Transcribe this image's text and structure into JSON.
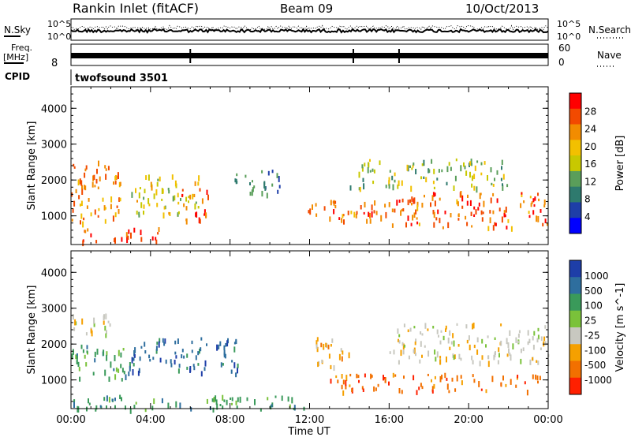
{
  "header": {
    "station": "Rankin Inlet (fitACF)",
    "beam": "Beam 09",
    "date": "10/Oct/2013"
  },
  "top_panels": {
    "nsky_label": "N.Sky",
    "nsearch_label": "N.Search",
    "left_ticks": [
      "10^5",
      "10^0"
    ],
    "right_ticks": [
      "10^5",
      "10^0"
    ],
    "freq_label_1": "Freq.",
    "freq_label_2": "[MHz]",
    "freq_ticks": [
      "8"
    ],
    "nave_label": "Nave",
    "nave_ticks": [
      "60",
      "0"
    ],
    "cpid_label": "CPID",
    "cpid_value": "twofsound 3501"
  },
  "colors": {
    "power_scale": [
      "#ff0000",
      "#f24a00",
      "#f28c00",
      "#f2c000",
      "#c8c800",
      "#5a9e5a",
      "#2e7a6e",
      "#1e3ea8",
      "#0000ff"
    ],
    "velocity_scale": [
      "#1e3ea8",
      "#2e6e9e",
      "#3a9a5a",
      "#7ac23a",
      "#c8c8c0",
      "#f5a000",
      "#f27000",
      "#ff2000"
    ]
  },
  "chart_data": [
    {
      "type": "heatmap",
      "panel": "power",
      "ylabel": "Slant Range [km]",
      "yticks": [
        1000,
        2000,
        3000,
        4000
      ],
      "ylim": [
        200,
        4600
      ],
      "colorbar_label": "Power [dB]",
      "colorbar_ticks": [
        4,
        8,
        12,
        16,
        20,
        24,
        28
      ],
      "colorbar_range": [
        0,
        32
      ],
      "bands": [
        {
          "x0": 0.0,
          "x1": 2.5,
          "y0": 800,
          "y1": 2600,
          "value": 24
        },
        {
          "x0": 0.5,
          "x1": 4.5,
          "y0": 300,
          "y1": 700,
          "value": 30
        },
        {
          "x0": 3.0,
          "x1": 6.5,
          "y0": 1000,
          "y1": 2200,
          "value": 18
        },
        {
          "x0": 5.5,
          "x1": 7.0,
          "y0": 900,
          "y1": 1800,
          "value": 28
        },
        {
          "x0": 8.0,
          "x1": 10.5,
          "y0": 1600,
          "y1": 2300,
          "value": 8
        },
        {
          "x0": 11.5,
          "x1": 16.0,
          "y0": 900,
          "y1": 1500,
          "value": 26
        },
        {
          "x0": 16.0,
          "x1": 24.0,
          "y0": 700,
          "y1": 1700,
          "value": 27
        },
        {
          "x0": 14.0,
          "x1": 22.0,
          "y0": 1800,
          "y1": 2600,
          "value": 14
        }
      ]
    },
    {
      "type": "heatmap",
      "panel": "velocity",
      "ylabel": "Slant Range [km]",
      "yticks": [
        1000,
        2000,
        3000,
        4000
      ],
      "ylim": [
        200,
        4600
      ],
      "colorbar_label": "Velocity [m s^-1]",
      "colorbar_ticks": [
        "1000",
        "500",
        "100",
        "25",
        "-25",
        "-100",
        "-500",
        "-1000"
      ],
      "bands": [
        {
          "x0": 0.0,
          "x1": 3.0,
          "y0": 1000,
          "y1": 2000,
          "value": "100"
        },
        {
          "x0": 0.0,
          "x1": 2.0,
          "y0": 2200,
          "y1": 2900,
          "value": "-25"
        },
        {
          "x0": 3.0,
          "x1": 8.5,
          "y0": 1200,
          "y1": 2200,
          "value": "500"
        },
        {
          "x0": 12.0,
          "x1": 14.0,
          "y0": 1400,
          "y1": 2200,
          "value": "-100"
        },
        {
          "x0": 13.0,
          "x1": 24.0,
          "y0": 700,
          "y1": 1200,
          "value": "-500"
        },
        {
          "x0": 16.0,
          "x1": 24.0,
          "y0": 1500,
          "y1": 2600,
          "value": "-25"
        },
        {
          "x0": 0.0,
          "x1": 12.0,
          "y0": 200,
          "y1": 600,
          "value": "100"
        }
      ]
    }
  ],
  "xaxis": {
    "label": "Time UT",
    "ticks": [
      "00:00",
      "04:00",
      "08:00",
      "12:00",
      "16:00",
      "20:00",
      "00:00"
    ],
    "range_hours": [
      0,
      24
    ]
  }
}
